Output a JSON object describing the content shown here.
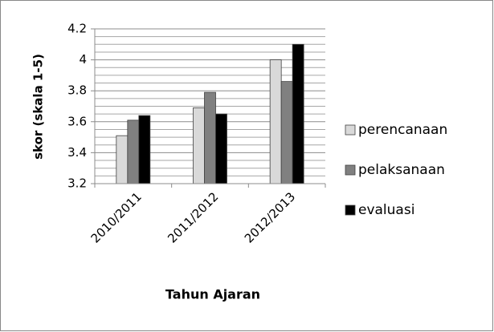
{
  "chart_data": {
    "type": "bar",
    "x_label": "Tahun Ajaran",
    "y_label": "skor (skala 1-5)",
    "categories": [
      "2010/2011",
      "2011/2012",
      "2012/2013"
    ],
    "series": [
      {
        "name": "perencanaan",
        "color": "#d9d9d9",
        "values": [
          3.51,
          3.69,
          4.0
        ]
      },
      {
        "name": "pelaksanaan",
        "color": "#808080",
        "values": [
          3.61,
          3.79,
          3.86
        ]
      },
      {
        "name": "evaluasi",
        "color": "#000000",
        "values": [
          3.64,
          3.65,
          4.1
        ]
      }
    ],
    "ylim": [
      3.2,
      4.2
    ],
    "yticks": [
      3.2,
      3.4,
      3.6,
      3.8,
      {
        "value": 4,
        "label": "4"
      },
      4.2
    ],
    "minor_yticks": [
      3.25,
      3.3,
      3.35,
      3.45,
      3.5,
      3.55,
      3.65,
      3.7,
      3.75,
      3.85,
      3.9,
      3.95,
      4.05,
      4.1,
      4.15
    ],
    "grid": true,
    "legend": "right"
  }
}
